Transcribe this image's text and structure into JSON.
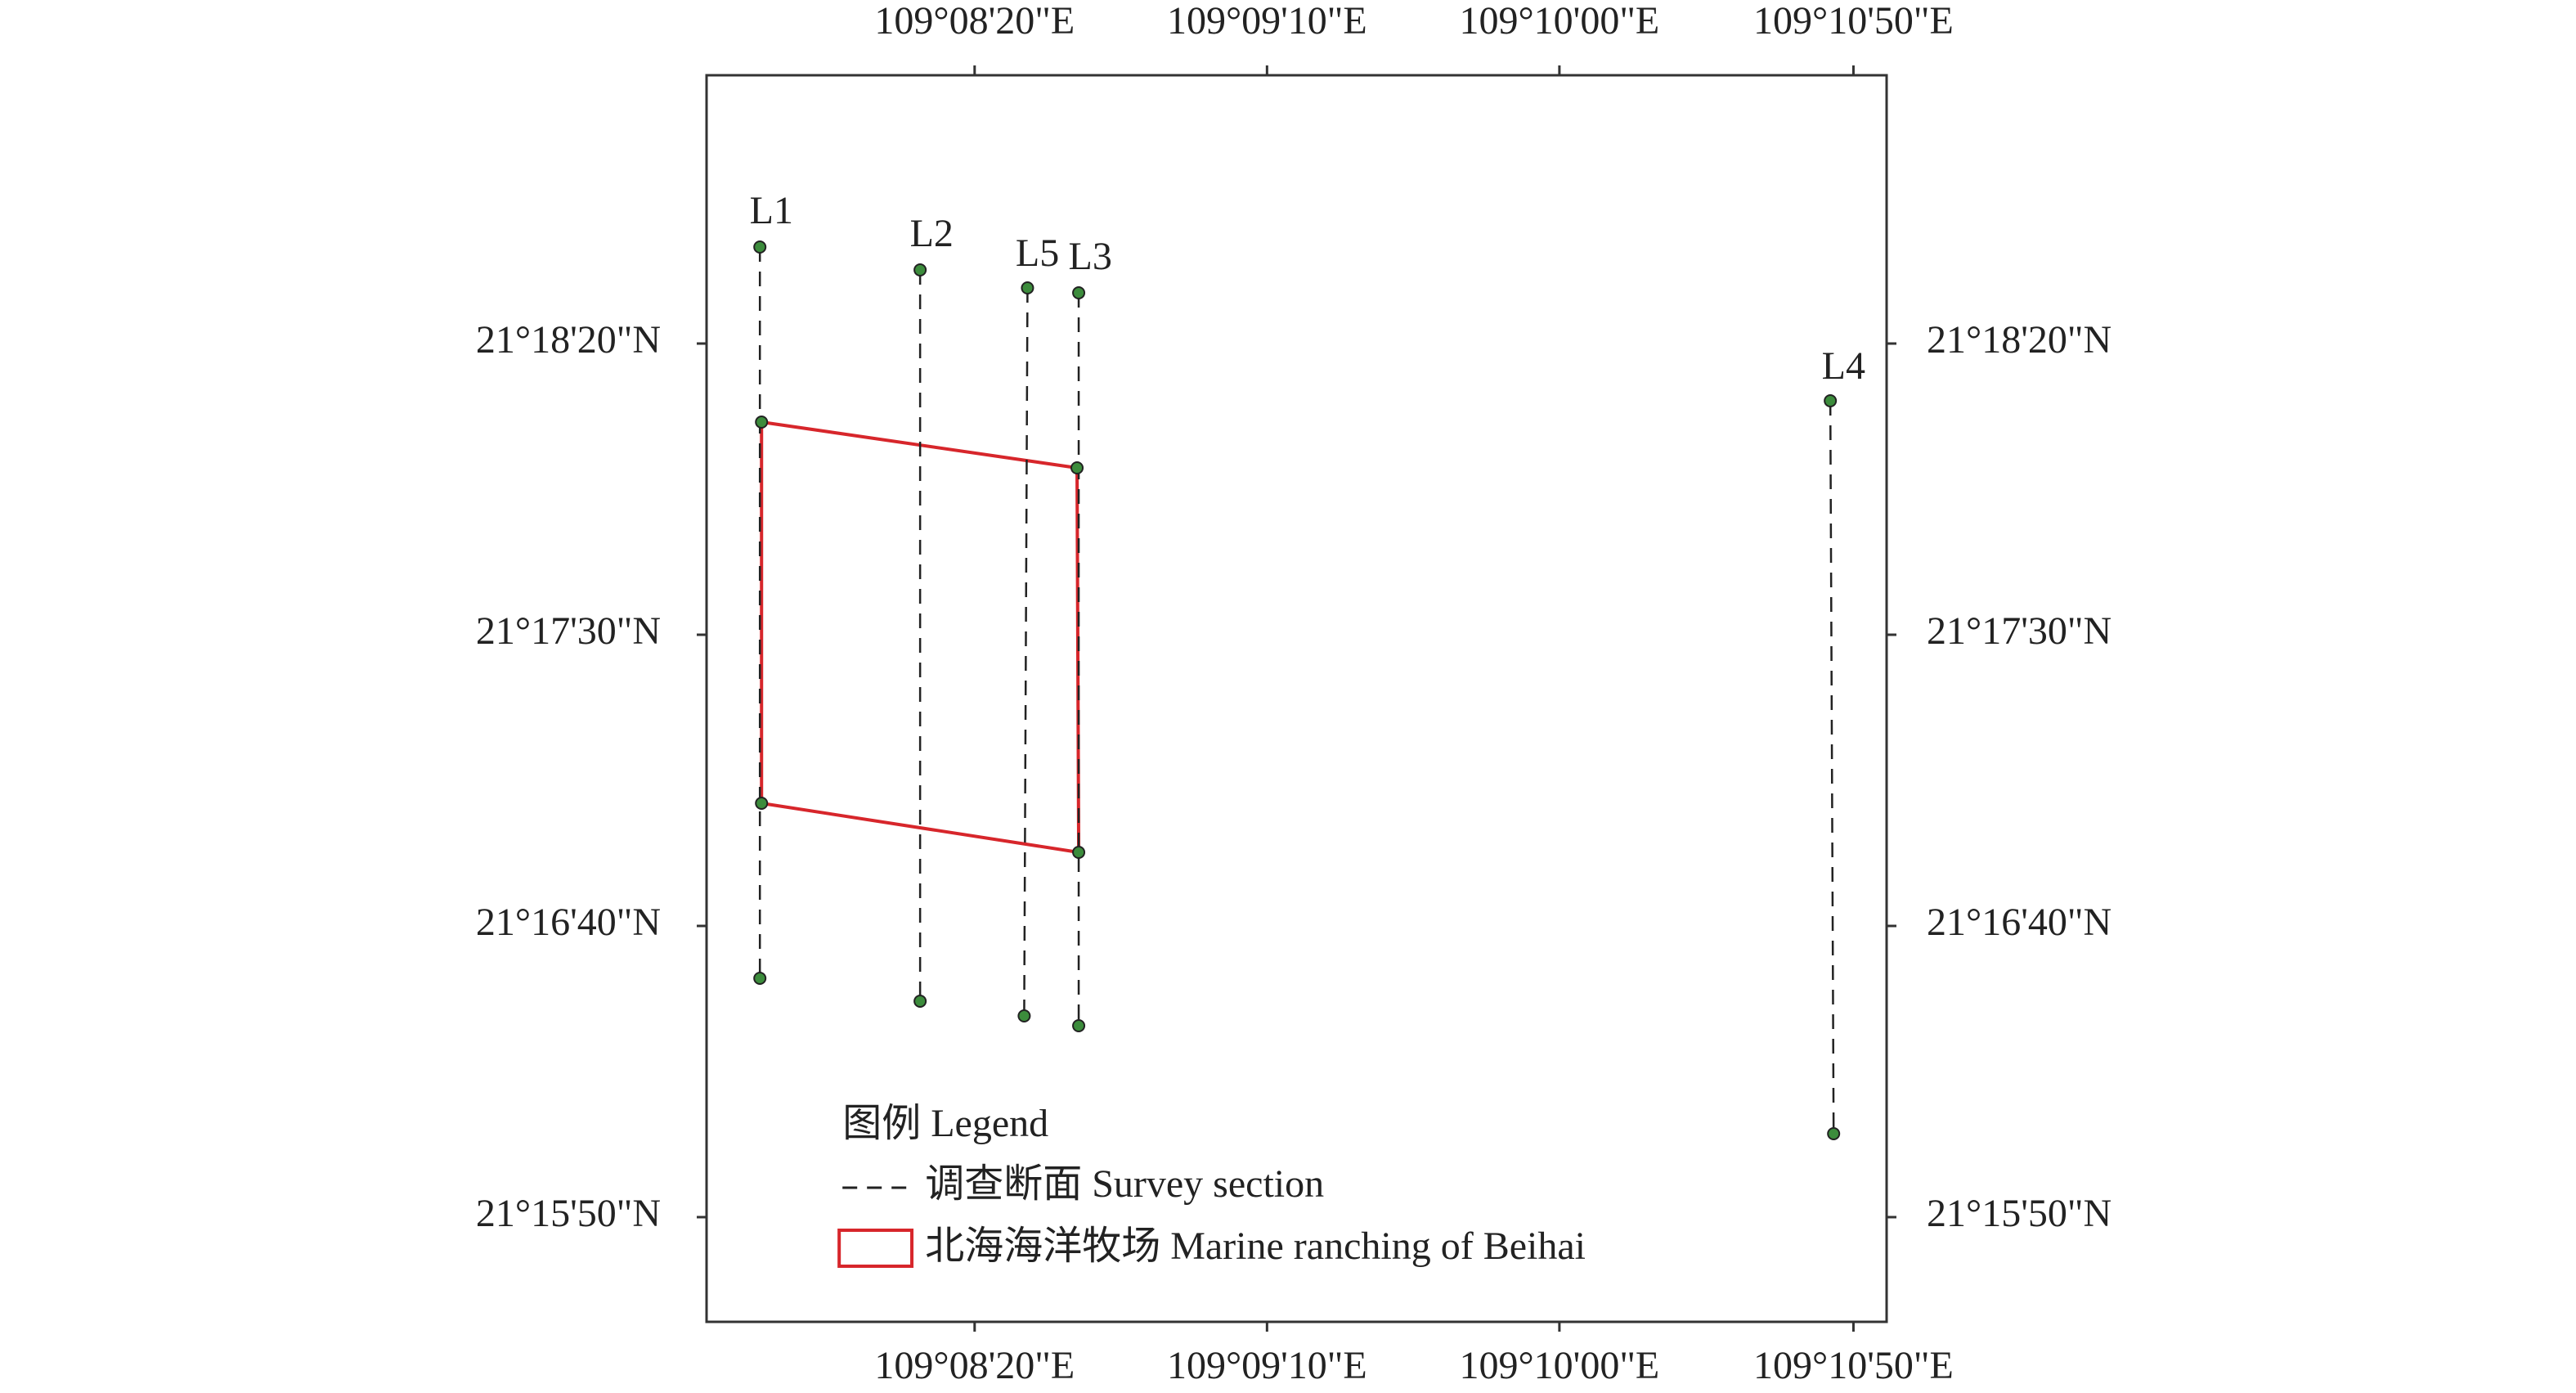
{
  "map": {
    "x_tick_labels": [
      "109°08'20\"E",
      "109°09'10\"E",
      "109°10'00\"E",
      "109°10'50\"E"
    ],
    "y_tick_labels": [
      "21°18'20\"N",
      "21°17'30\"N",
      "21°16'40\"N",
      "21°15'50\"N"
    ],
    "survey_lines": [
      "L1",
      "L2",
      "L5",
      "L3",
      "L4"
    ],
    "legend": {
      "title": "图例 Legend",
      "items": [
        "调查断面 Survey section",
        "北海海洋牧场 Marine ranching of Beihai"
      ]
    }
  }
}
